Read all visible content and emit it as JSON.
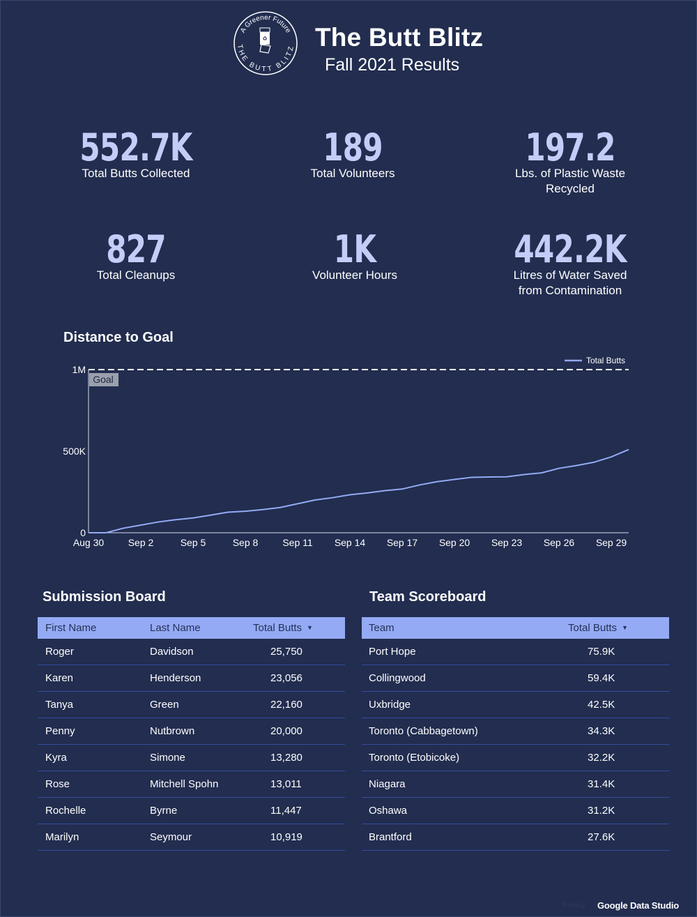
{
  "header": {
    "logo_top_text": "A Greener Future",
    "logo_bottom_text": "THE BUTT BLITZ",
    "title": "The Butt Blitz",
    "subtitle": "Fall 2021 Results"
  },
  "kpis": [
    {
      "value": "552.7K",
      "label": "Total Butts Collected"
    },
    {
      "value": "189",
      "label": "Total Volunteers"
    },
    {
      "value": "197.2",
      "label_line1": "Lbs. of Plastic Waste",
      "label_line2": "Recycled"
    },
    {
      "value": "827",
      "label": "Total Cleanups"
    },
    {
      "value": "1K",
      "label": "Volunteer Hours"
    },
    {
      "value": "442.2K",
      "label_line1": "Litres of Water Saved",
      "label_line2": "from Contamination"
    }
  ],
  "chart_section": {
    "title": "Distance to Goal"
  },
  "chart_data": {
    "type": "line",
    "title": "Distance to Goal",
    "x": [
      "Aug 30",
      "Aug 31",
      "Sep 1",
      "Sep 2",
      "Sep 3",
      "Sep 4",
      "Sep 5",
      "Sep 6",
      "Sep 7",
      "Sep 8",
      "Sep 9",
      "Sep 10",
      "Sep 11",
      "Sep 12",
      "Sep 13",
      "Sep 14",
      "Sep 15",
      "Sep 16",
      "Sep 17",
      "Sep 18",
      "Sep 19",
      "Sep 20",
      "Sep 21",
      "Sep 22",
      "Sep 23",
      "Sep 24",
      "Sep 25",
      "Sep 26",
      "Sep 27",
      "Sep 28",
      "Sep 29",
      "Sep 30"
    ],
    "x_tick_labels": [
      "Aug 30",
      "Sep 2",
      "Sep 5",
      "Sep 8",
      "Sep 11",
      "Sep 14",
      "Sep 17",
      "Sep 20",
      "Sep 23",
      "Sep 26",
      "Sep 29"
    ],
    "series": [
      {
        "name": "Total Butts",
        "color": "#94aaf5",
        "values": [
          0,
          0,
          28000,
          47000,
          66000,
          80000,
          91000,
          108000,
          126000,
          132000,
          142000,
          155000,
          178000,
          201000,
          215000,
          233000,
          244000,
          258000,
          268000,
          293000,
          313000,
          327000,
          340000,
          342000,
          343000,
          357000,
          367000,
          395000,
          412000,
          432000,
          465000,
          510000
        ]
      }
    ],
    "reference_line": {
      "label": "Goal",
      "value": 1000000
    },
    "y_ticks": [
      {
        "value": 0,
        "label": "0"
      },
      {
        "value": 500000,
        "label": "500K"
      },
      {
        "value": 1000000,
        "label": "1M"
      }
    ],
    "ylim": [
      0,
      1000000
    ],
    "legend_position": "top-right",
    "grid": false
  },
  "submission_board": {
    "title": "Submission Board",
    "columns": [
      "First Name",
      "Last Name",
      "Total Butts"
    ],
    "rows": [
      [
        "Roger",
        "Davidson",
        "25,750"
      ],
      [
        "Karen",
        "Henderson",
        "23,056"
      ],
      [
        "Tanya",
        "Green",
        "22,160"
      ],
      [
        "Penny",
        "Nutbrown",
        "20,000"
      ],
      [
        "Kyra",
        "Simone",
        "13,280"
      ],
      [
        "Rose",
        "Mitchell Spohn",
        "13,011"
      ],
      [
        "Rochelle",
        "Byrne",
        "11,447"
      ],
      [
        "Marilyn",
        "Seymour",
        "10,919"
      ]
    ]
  },
  "team_scoreboard": {
    "title": "Team Scoreboard",
    "columns": [
      "Team",
      "Total Butts"
    ],
    "rows": [
      [
        "Port Hope",
        "75.9K"
      ],
      [
        "Collingwood",
        "59.4K"
      ],
      [
        "Uxbridge",
        "42.5K"
      ],
      [
        "Toronto (Cabbagetown)",
        "34.3K"
      ],
      [
        "Toronto (Etobicoke)",
        "32.2K"
      ],
      [
        "Niagara",
        "31.4K"
      ],
      [
        "Oshawa",
        "31.2K"
      ],
      [
        "Brantford",
        "27.6K"
      ]
    ]
  },
  "footer": {
    "privacy": "Privacy",
    "brand": "Google Data Studio"
  },
  "colors": {
    "background": "#222d4f",
    "accent": "#94aaf5",
    "kpi": "#c3cdf8"
  }
}
